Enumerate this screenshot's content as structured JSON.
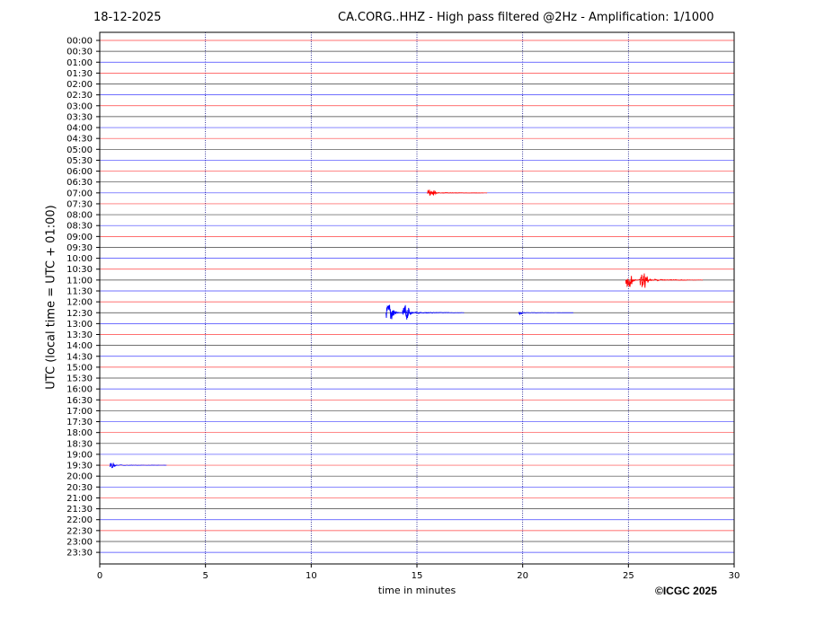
{
  "header": {
    "date": "18-12-2025",
    "title": "CA.CORG..HHZ - High pass filtered @2Hz - Amplification: 1/1000"
  },
  "footer": {
    "copyright": "©ICGC 2025"
  },
  "chart_data": {
    "type": "line",
    "xlabel": "time in minutes",
    "ylabel": "UTC (local time = UTC + 01:00)",
    "xlim": [
      0,
      30
    ],
    "x_ticks": [
      0,
      5,
      10,
      15,
      20,
      25,
      30
    ],
    "vertical_gridlines_minutes": [
      5,
      10,
      15,
      20,
      25
    ],
    "grid": "vertical dotted",
    "row_labels": [
      "00:00",
      "00:30",
      "01:00",
      "01:30",
      "02:00",
      "02:30",
      "03:00",
      "03:30",
      "04:00",
      "04:30",
      "05:00",
      "05:30",
      "06:00",
      "06:30",
      "07:00",
      "07:30",
      "08:00",
      "08:30",
      "09:00",
      "09:30",
      "10:00",
      "10:30",
      "11:00",
      "11:30",
      "12:00",
      "12:30",
      "13:00",
      "13:30",
      "14:00",
      "14:30",
      "15:00",
      "15:30",
      "16:00",
      "16:30",
      "17:00",
      "17:30",
      "18:00",
      "18:30",
      "19:00",
      "19:30",
      "20:00",
      "20:30",
      "21:00",
      "21:30",
      "22:00",
      "22:30",
      "23:00",
      "23:30"
    ],
    "trace_colors": [
      "#ff0000",
      "#000000",
      "#0000ff"
    ],
    "events": [
      {
        "row": "07:00",
        "minute": 15.6,
        "amplitude": 0.35,
        "color": "#ff0000"
      },
      {
        "row": "07:00",
        "minute": 15.8,
        "amplitude": 0.25,
        "color": "#ff0000"
      },
      {
        "row": "11:00",
        "minute": 25.05,
        "amplitude": 0.7,
        "color": "#ff0000"
      },
      {
        "row": "11:00",
        "minute": 25.75,
        "amplitude": 0.85,
        "color": "#ff0000"
      },
      {
        "row": "12:30",
        "minute": 13.75,
        "amplitude": 0.9,
        "color": "#0000ff"
      },
      {
        "row": "12:30",
        "minute": 14.5,
        "amplitude": 0.75,
        "color": "#0000ff"
      },
      {
        "row": "12:30",
        "minute": 19.9,
        "amplitude": 0.2,
        "color": "#0000ff"
      },
      {
        "row": "19:30",
        "minute": 0.6,
        "amplitude": 0.35,
        "color": "#0000ff"
      }
    ]
  }
}
